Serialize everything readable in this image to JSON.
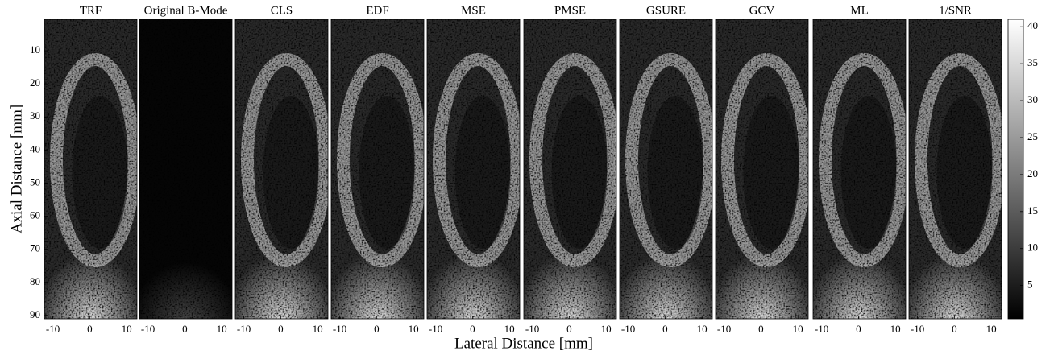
{
  "figure": {
    "panels": [
      "TRF",
      "Original B-Mode",
      "CLS",
      "EDF",
      "MSE",
      "PMSE",
      "GSURE",
      "GCV",
      "ML",
      "1/SNR"
    ],
    "y_label": "Axial Distance [mm]",
    "x_label": "Lateral Distance [mm]",
    "ylim": [
      0.5,
      91
    ],
    "yticks": [
      10,
      20,
      30,
      40,
      50,
      60,
      70,
      80,
      90
    ],
    "xlim": [
      -12.3,
      12.8
    ],
    "xticks": [
      -10,
      0,
      10
    ],
    "colorbar_lim": [
      0.5,
      41
    ],
    "colorbar_ticks": [
      5,
      10,
      15,
      20,
      25,
      30,
      35,
      40
    ]
  }
}
